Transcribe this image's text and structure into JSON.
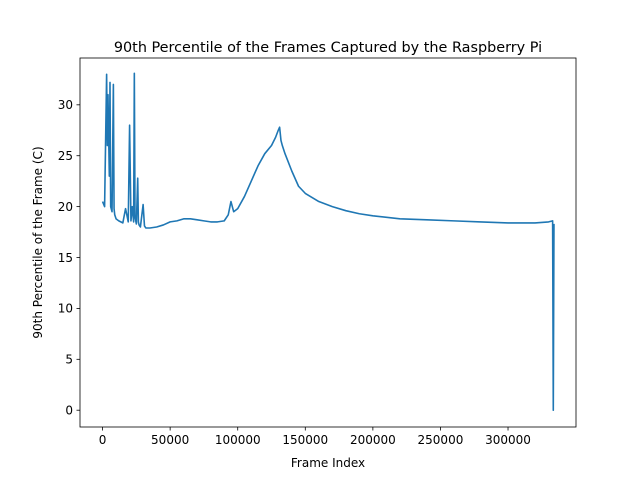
{
  "chart_data": {
    "type": "line",
    "title": "90th Percentile of the Frames Captured by the Raspberry Pi",
    "xlabel": "Frame Index",
    "ylabel": "90th Percentile of the Frame (C)",
    "xlim": [
      -16700,
      350300
    ],
    "ylim": [
      -1.65,
      34.6
    ],
    "xticks": [
      0,
      50000,
      100000,
      150000,
      200000,
      250000,
      300000
    ],
    "xtick_labels": [
      "0",
      "50000",
      "100000",
      "150000",
      "200000",
      "250000",
      "300000"
    ],
    "yticks": [
      0,
      5,
      10,
      15,
      20,
      25,
      30
    ],
    "ytick_labels": [
      "0",
      "5",
      "10",
      "15",
      "20",
      "25",
      "30"
    ],
    "grid": false,
    "series": [
      {
        "color": "#1f77b4",
        "x": [
          0,
          1500,
          3000,
          3500,
          4000,
          5000,
          5500,
          6000,
          7000,
          8000,
          8500,
          9000,
          10000,
          12000,
          15000,
          17000,
          19000,
          20000,
          21000,
          22000,
          23000,
          23500,
          24000,
          25000,
          26000,
          26500,
          27000,
          28000,
          30000,
          31000,
          32000,
          35000,
          40000,
          45000,
          50000,
          55000,
          60000,
          65000,
          70000,
          75000,
          80000,
          85000,
          90000,
          93000,
          95000,
          97000,
          100000,
          105000,
          110000,
          115000,
          120000,
          125000,
          128000,
          130000,
          131000,
          132000,
          133000,
          135000,
          140000,
          145000,
          150000,
          160000,
          170000,
          180000,
          190000,
          200000,
          220000,
          240000,
          260000,
          280000,
          300000,
          320000,
          330000,
          333000,
          333500,
          334000
        ],
        "values": [
          20.5,
          20.0,
          33.0,
          26.0,
          31.0,
          23.0,
          32.2,
          20.0,
          19.5,
          32.0,
          19.8,
          19.2,
          18.8,
          18.6,
          18.4,
          19.8,
          18.5,
          28.0,
          18.6,
          20.0,
          18.5,
          33.1,
          19.0,
          18.3,
          22.8,
          18.5,
          18.2,
          18.0,
          20.2,
          18.1,
          17.9,
          17.9,
          18.0,
          18.2,
          18.5,
          18.6,
          18.8,
          18.8,
          18.7,
          18.6,
          18.5,
          18.5,
          18.6,
          19.2,
          20.5,
          19.5,
          19.8,
          21.0,
          22.5,
          24.0,
          25.2,
          26.0,
          26.8,
          27.5,
          27.8,
          26.5,
          26.0,
          25.2,
          23.5,
          22.0,
          21.3,
          20.5,
          20.0,
          19.6,
          19.3,
          19.1,
          18.8,
          18.7,
          18.6,
          18.5,
          18.4,
          18.4,
          18.5,
          18.6,
          0.0,
          18.3
        ]
      }
    ]
  }
}
